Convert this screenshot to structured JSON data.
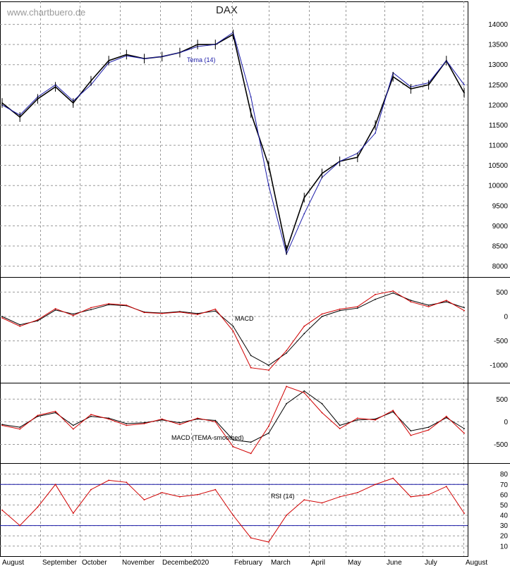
{
  "header": {
    "watermark": "www.chartbuero.de",
    "title": "DAX"
  },
  "colors": {
    "price": "#000000",
    "tema": "#1a1aa8",
    "macd": "#000000",
    "signal": "#d00000",
    "rsi": "#d00000",
    "rsi_bands": "#1a1aa8",
    "grid": "#9a9a9a"
  },
  "chart_data": [
    {
      "type": "line",
      "panel": "price",
      "title": "DAX",
      "legend": [
        "Tema (14)"
      ],
      "ylim": [
        7800,
        14500
      ],
      "y_ticks": [
        8000,
        8500,
        9000,
        9500,
        10000,
        10500,
        11000,
        11500,
        12000,
        12500,
        13000,
        13500,
        14000
      ],
      "x_month_labels": [
        "August",
        "September",
        "October",
        "November",
        "December",
        "2020",
        "February",
        "March",
        "April",
        "May",
        "June",
        "July",
        "August"
      ],
      "x": [
        "Aug",
        "mid-Aug",
        "Sep",
        "mid-Sep",
        "Oct",
        "mid-Oct",
        "Nov",
        "mid-Nov",
        "Dec",
        "mid-Dec",
        "Jan",
        "mid-Jan",
        "Feb",
        "mid-Feb",
        "Mar",
        "early-Mar",
        "mid-Mar",
        "late-Mar",
        "Apr",
        "mid-Apr",
        "May",
        "mid-May",
        "Jun",
        "mid-Jun",
        "Jul",
        "mid-Jul",
        "late-Jul"
      ],
      "series": [
        {
          "name": "Close",
          "values": [
            12050,
            11700,
            12150,
            12450,
            12050,
            12600,
            13100,
            13250,
            13150,
            13200,
            13300,
            13500,
            13500,
            13750,
            11800,
            10500,
            8400,
            9700,
            10300,
            10600,
            10700,
            11500,
            12700,
            12400,
            12500,
            13100,
            12300
          ]
        },
        {
          "name": "Tema (14)",
          "values": [
            12000,
            11750,
            12200,
            12500,
            12100,
            12500,
            13050,
            13220,
            13150,
            13200,
            13300,
            13450,
            13500,
            13800,
            12200,
            10000,
            8300,
            9300,
            10200,
            10600,
            10800,
            11300,
            12800,
            12450,
            12550,
            13100,
            12500
          ]
        }
      ]
    },
    {
      "type": "line",
      "panel": "macd",
      "legend": [
        "MACD"
      ],
      "ylim": [
        -1300,
        750
      ],
      "y_ticks": [
        -1000,
        -500,
        0,
        500
      ],
      "series": [
        {
          "name": "MACD",
          "values": [
            0,
            -170,
            -90,
            130,
            50,
            140,
            240,
            220,
            90,
            70,
            100,
            60,
            110,
            -200,
            -800,
            -1000,
            -750,
            -350,
            0,
            120,
            170,
            350,
            480,
            330,
            230,
            300,
            180
          ]
        },
        {
          "name": "Signal",
          "values": [
            -30,
            -200,
            -70,
            160,
            20,
            180,
            260,
            230,
            80,
            60,
            90,
            40,
            150,
            -300,
            -1050,
            -1100,
            -700,
            -200,
            50,
            150,
            200,
            450,
            520,
            300,
            200,
            330,
            120
          ]
        }
      ]
    },
    {
      "type": "line",
      "panel": "macd_tema",
      "legend": [
        "MACD (TEMA-smoothed)"
      ],
      "ylim": [
        -850,
        800
      ],
      "y_ticks": [
        -500,
        0,
        500
      ],
      "series": [
        {
          "name": "MACD (TEMA-smoothed)",
          "values": [
            -60,
            -120,
            120,
            200,
            -80,
            120,
            80,
            -40,
            -20,
            40,
            -20,
            60,
            30,
            -400,
            -450,
            -250,
            400,
            680,
            400,
            -80,
            40,
            60,
            220,
            -200,
            -120,
            90,
            -150
          ]
        },
        {
          "name": "Signal",
          "values": [
            -80,
            -160,
            140,
            230,
            -160,
            160,
            60,
            -80,
            -40,
            60,
            -60,
            80,
            0,
            -550,
            -700,
            -100,
            780,
            640,
            200,
            -150,
            80,
            40,
            250,
            -300,
            -180,
            120,
            -250
          ]
        }
      ]
    },
    {
      "type": "line",
      "panel": "rsi",
      "legend": [
        "RSI (14)"
      ],
      "ylim": [
        3,
        88
      ],
      "y_ticks": [
        10,
        20,
        30,
        40,
        50,
        60,
        70,
        80
      ],
      "bands": [
        30,
        70
      ],
      "series": [
        {
          "name": "RSI (14)",
          "values": [
            45,
            30,
            48,
            70,
            42,
            65,
            74,
            72,
            55,
            62,
            58,
            60,
            65,
            40,
            18,
            14,
            40,
            55,
            52,
            58,
            62,
            70,
            76,
            58,
            60,
            68,
            42
          ]
        }
      ]
    }
  ]
}
